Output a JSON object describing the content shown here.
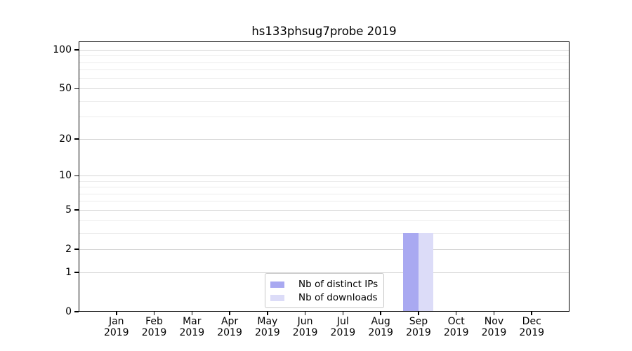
{
  "chart_data": {
    "type": "bar",
    "title": "hs133phsug7probe 2019",
    "categories": [
      "Jan",
      "Feb",
      "Mar",
      "Apr",
      "May",
      "Jun",
      "Jul",
      "Aug",
      "Sep",
      "Oct",
      "Nov",
      "Dec"
    ],
    "category_year": "2019",
    "series": [
      {
        "name": "Nb of distinct IPs",
        "color": "#a9a9f1",
        "values": [
          0,
          0,
          0,
          0,
          0,
          0,
          0,
          0,
          3,
          0,
          0,
          0
        ]
      },
      {
        "name": "Nb of downloads",
        "color": "#dcdcf8",
        "values": [
          0,
          0,
          0,
          0,
          0,
          0,
          0,
          0,
          3,
          0,
          0,
          0
        ]
      }
    ],
    "yaxis": {
      "scale": "log1p",
      "ticks": [
        0,
        1,
        2,
        5,
        10,
        20,
        50,
        100
      ],
      "minor_gridlines": [
        3,
        4,
        6,
        7,
        8,
        9,
        30,
        40,
        60,
        70,
        80,
        90
      ],
      "ylim": [
        0,
        116.5
      ]
    },
    "xlabel": "",
    "ylabel": "",
    "grid": true,
    "legend_position": "lower center",
    "colors": {
      "major_grid": "#d4d4d4",
      "minor_grid": "#ececec",
      "axis": "#000000",
      "text": "#000000",
      "background": "#ffffff",
      "legend_border": "#c8c8c8",
      "bar_distinct_ips": "#a9a9f1",
      "bar_downloads": "#dcdcf8"
    }
  }
}
